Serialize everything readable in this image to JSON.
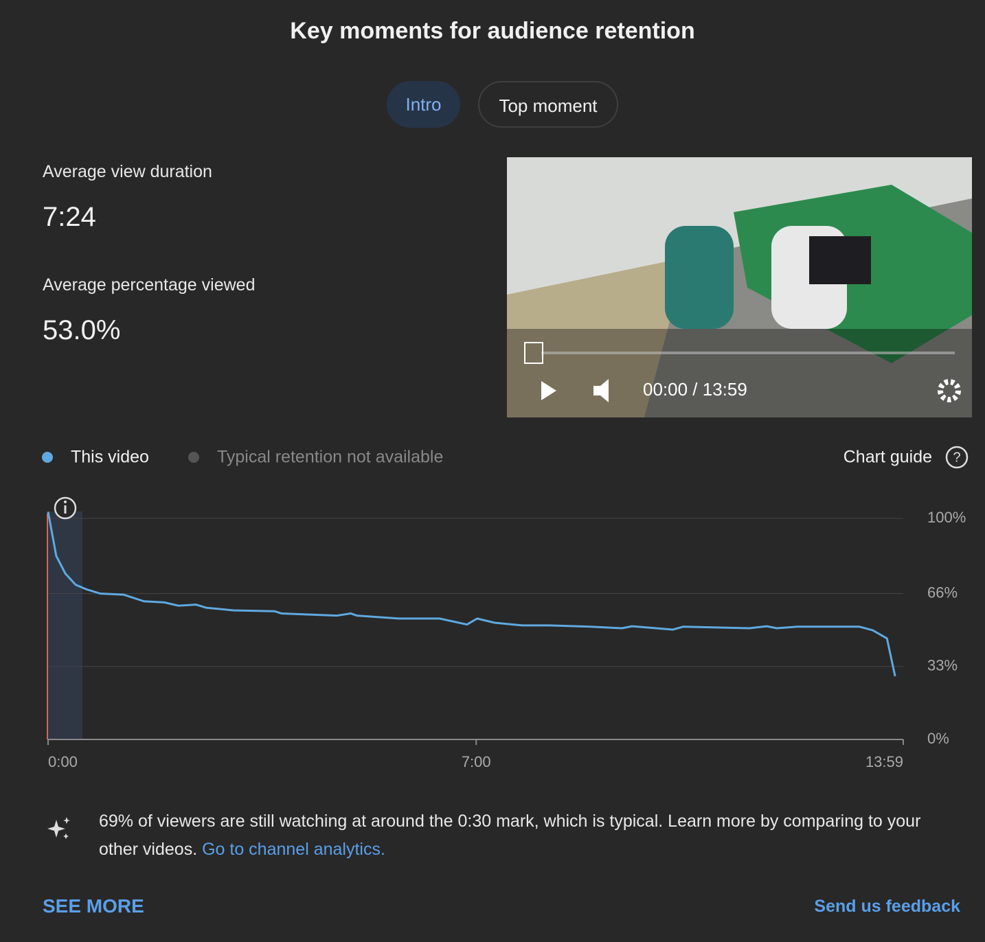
{
  "header": {
    "title": "Key moments for audience retention"
  },
  "tabs": [
    "Intro",
    "Top moment"
  ],
  "stats": [
    {
      "label": "Average view duration",
      "value": "7:24"
    },
    {
      "label": "Average percentage viewed",
      "value": "53.0%"
    }
  ],
  "player": {
    "time": "00:00 / 13:59"
  },
  "chart_guide": "Chart guide",
  "chart_data": {
    "type": "line",
    "legend_note": "Typical retention not available",
    "x": [
      0,
      8,
      17,
      27,
      37,
      51,
      74,
      94,
      114,
      128,
      145,
      155,
      182,
      222,
      229,
      283,
      297,
      303,
      344,
      384,
      411,
      421,
      438,
      465,
      492,
      532,
      563,
      573,
      613,
      623,
      688,
      705,
      715,
      735,
      796,
      809,
      823,
      831
    ],
    "series": [
      {
        "name": "This video",
        "color": "#5fa9e0",
        "values": [
          103,
          83,
          75,
          70,
          68,
          66,
          65.5,
          62.5,
          62,
          60.5,
          61,
          59.6,
          58.4,
          58,
          57,
          56,
          57,
          56,
          54.7,
          54.7,
          52,
          54.7,
          52.8,
          51.6,
          51.6,
          51,
          50.3,
          51.2,
          49.7,
          51,
          50.3,
          51.2,
          50.3,
          51,
          51,
          49.4,
          45.7,
          28.6
        ]
      }
    ],
    "xlim": [
      0,
      839
    ],
    "xticks": [
      {
        "value": 0,
        "label": "0:00"
      },
      {
        "value": 420,
        "label": "7:00"
      },
      {
        "value": 839,
        "label": "13:59"
      }
    ],
    "ylim": [
      0,
      100
    ],
    "yticks": [
      {
        "value": 0,
        "label": "0%"
      },
      {
        "value": 33,
        "label": "33%"
      },
      {
        "value": 66,
        "label": "66%"
      },
      {
        "value": 100,
        "label": "100%"
      }
    ],
    "grid": true
  },
  "insight": {
    "text": "69% of viewers are still watching at around the 0:30 mark, which is typical. Learn more by comparing to your other videos.",
    "link": "Go to channel analytics."
  },
  "footer": {
    "see_more": "SEE MORE",
    "feedback": "Send us feedback"
  }
}
